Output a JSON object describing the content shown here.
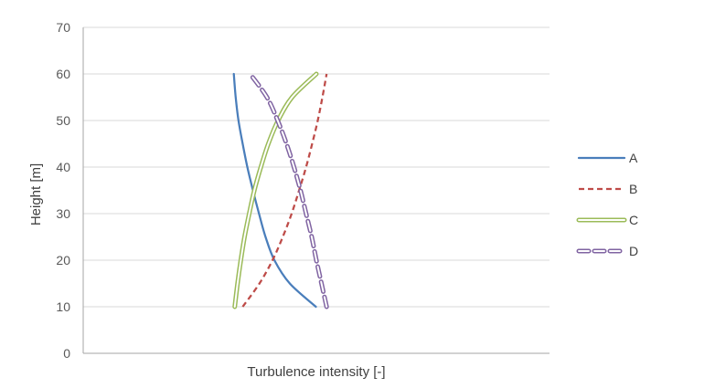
{
  "chart_data": {
    "type": "line",
    "title": "",
    "xlabel": "Turbulence intensity [-]",
    "ylabel": "Height [m]",
    "ylim": [
      0,
      70
    ],
    "yticks": [
      0,
      10,
      20,
      30,
      40,
      50,
      60,
      70
    ],
    "x_ticks_shown": false,
    "grid": "horizontal",
    "legend_position": "right",
    "series": [
      {
        "name": "A",
        "color": "#4a7ebb",
        "style": "solid",
        "points": [
          {
            "x": 0.499,
            "y": 10
          },
          {
            "x": 0.443,
            "y": 15
          },
          {
            "x": 0.41,
            "y": 20
          },
          {
            "x": 0.391,
            "y": 25
          },
          {
            "x": 0.377,
            "y": 30
          },
          {
            "x": 0.364,
            "y": 35
          },
          {
            "x": 0.352,
            "y": 40
          },
          {
            "x": 0.342,
            "y": 45
          },
          {
            "x": 0.333,
            "y": 50
          },
          {
            "x": 0.327,
            "y": 55
          },
          {
            "x": 0.323,
            "y": 60
          }
        ]
      },
      {
        "name": "B",
        "color": "#be4b48",
        "style": "dashed",
        "points": [
          {
            "x": 0.342,
            "y": 10
          },
          {
            "x": 0.378,
            "y": 15
          },
          {
            "x": 0.406,
            "y": 20
          },
          {
            "x": 0.428,
            "y": 25
          },
          {
            "x": 0.447,
            "y": 30
          },
          {
            "x": 0.463,
            "y": 35
          },
          {
            "x": 0.478,
            "y": 40
          },
          {
            "x": 0.491,
            "y": 45
          },
          {
            "x": 0.503,
            "y": 50
          },
          {
            "x": 0.513,
            "y": 55
          },
          {
            "x": 0.522,
            "y": 60
          }
        ]
      },
      {
        "name": "C",
        "color": "#9bbb59",
        "style": "double",
        "points": [
          {
            "x": 0.325,
            "y": 10
          },
          {
            "x": 0.331,
            "y": 15
          },
          {
            "x": 0.338,
            "y": 20
          },
          {
            "x": 0.346,
            "y": 25
          },
          {
            "x": 0.356,
            "y": 30
          },
          {
            "x": 0.367,
            "y": 35
          },
          {
            "x": 0.381,
            "y": 40
          },
          {
            "x": 0.397,
            "y": 45
          },
          {
            "x": 0.418,
            "y": 50
          },
          {
            "x": 0.448,
            "y": 55
          },
          {
            "x": 0.5,
            "y": 60
          }
        ]
      },
      {
        "name": "D",
        "color": "#8064a2",
        "style": "double-dashed",
        "points": [
          {
            "x": 0.522,
            "y": 10
          },
          {
            "x": 0.511,
            "y": 15
          },
          {
            "x": 0.5,
            "y": 20
          },
          {
            "x": 0.49,
            "y": 25
          },
          {
            "x": 0.478,
            "y": 30
          },
          {
            "x": 0.466,
            "y": 35
          },
          {
            "x": 0.452,
            "y": 40
          },
          {
            "x": 0.436,
            "y": 45
          },
          {
            "x": 0.417,
            "y": 50
          },
          {
            "x": 0.394,
            "y": 55
          },
          {
            "x": 0.358,
            "y": 60
          }
        ]
      }
    ]
  }
}
